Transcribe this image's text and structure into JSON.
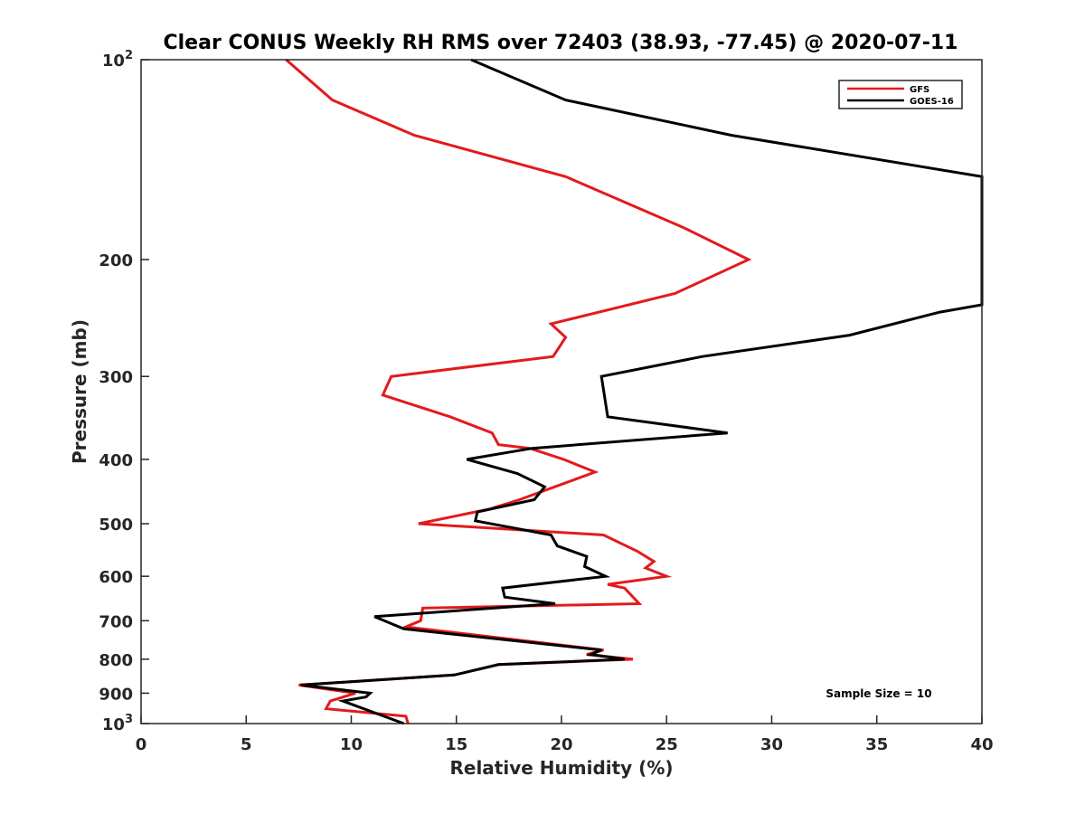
{
  "chart_data": {
    "type": "line",
    "title": "Clear CONUS Weekly RH RMS over 72403 (38.93, -77.45) @ 2020-07-11",
    "xlabel": "Relative Humidity (%)",
    "ylabel": "Pressure (mb)",
    "xlim": [
      0,
      40
    ],
    "ylim": [
      100,
      1000
    ],
    "y_scale": "log",
    "y_reversed": true,
    "x_ticks": [
      "0",
      "5",
      "10",
      "15",
      "20",
      "25",
      "30",
      "35",
      "40"
    ],
    "y_ticks": [
      {
        "value": 100,
        "label": "10",
        "sup": "2"
      },
      {
        "value": 200,
        "label": "200",
        "sup": ""
      },
      {
        "value": 300,
        "label": "300",
        "sup": ""
      },
      {
        "value": 400,
        "label": "400",
        "sup": ""
      },
      {
        "value": 500,
        "label": "500",
        "sup": ""
      },
      {
        "value": 600,
        "label": "600",
        "sup": ""
      },
      {
        "value": 700,
        "label": "700",
        "sup": ""
      },
      {
        "value": 800,
        "label": "800",
        "sup": ""
      },
      {
        "value": 900,
        "label": "900",
        "sup": ""
      },
      {
        "value": 1000,
        "label": "10",
        "sup": "3"
      }
    ],
    "grid": false,
    "legend_position": "top-right",
    "annotation": "Sample Size = 10",
    "series": [
      {
        "name": "GFS",
        "color": "#e31a1c",
        "points": [
          [
            6.9,
            100
          ],
          [
            9.1,
            115
          ],
          [
            13.0,
            130
          ],
          [
            20.2,
            150
          ],
          [
            25.8,
            179
          ],
          [
            28.9,
            200
          ],
          [
            25.4,
            225
          ],
          [
            19.5,
            250
          ],
          [
            20.2,
            262
          ],
          [
            19.6,
            280
          ],
          [
            11.9,
            300
          ],
          [
            11.5,
            320
          ],
          [
            14.7,
            345
          ],
          [
            16.7,
            365
          ],
          [
            17.0,
            380
          ],
          [
            18.5,
            385
          ],
          [
            20.1,
            400
          ],
          [
            21.6,
            418
          ],
          [
            20.1,
            435
          ],
          [
            18.0,
            460
          ],
          [
            16.6,
            475
          ],
          [
            13.2,
            500
          ],
          [
            22.0,
            520
          ],
          [
            23.6,
            550
          ],
          [
            24.4,
            570
          ],
          [
            24.0,
            583
          ],
          [
            25.0,
            600
          ],
          [
            22.2,
            617
          ],
          [
            23.0,
            625
          ],
          [
            23.7,
            660
          ],
          [
            13.4,
            670
          ],
          [
            13.3,
            700
          ],
          [
            12.6,
            715
          ],
          [
            22.0,
            775
          ],
          [
            21.2,
            787
          ],
          [
            23.4,
            800
          ],
          [
            17.0,
            815
          ],
          [
            14.9,
            845
          ],
          [
            7.5,
            875
          ],
          [
            10.2,
            900
          ],
          [
            9.0,
            925
          ],
          [
            8.8,
            950
          ],
          [
            12.6,
            975
          ],
          [
            12.7,
            1000
          ]
        ]
      },
      {
        "name": "GOES-16",
        "color": "#000000",
        "points": [
          [
            15.7,
            100
          ],
          [
            20.2,
            115
          ],
          [
            28.1,
            130
          ],
          [
            40.0,
            150
          ],
          [
            40.0,
            234
          ],
          [
            38.0,
            240
          ],
          [
            33.7,
            260
          ],
          [
            26.7,
            280
          ],
          [
            21.9,
            300
          ],
          [
            22.2,
            345
          ],
          [
            27.9,
            365
          ],
          [
            18.6,
            385
          ],
          [
            15.5,
            400
          ],
          [
            17.9,
            420
          ],
          [
            19.2,
            440
          ],
          [
            18.7,
            460
          ],
          [
            16.0,
            480
          ],
          [
            15.9,
            495
          ],
          [
            19.5,
            520
          ],
          [
            19.8,
            540
          ],
          [
            21.2,
            560
          ],
          [
            21.1,
            580
          ],
          [
            22.1,
            600
          ],
          [
            17.2,
            625
          ],
          [
            17.3,
            645
          ],
          [
            19.7,
            660
          ],
          [
            11.1,
            690
          ],
          [
            12.5,
            720
          ],
          [
            21.9,
            775
          ],
          [
            21.4,
            787
          ],
          [
            23.0,
            800
          ],
          [
            17.0,
            815
          ],
          [
            14.9,
            845
          ],
          [
            7.6,
            875
          ],
          [
            10.9,
            900
          ],
          [
            10.7,
            912
          ],
          [
            9.6,
            925
          ],
          [
            12.5,
            1000
          ]
        ]
      }
    ]
  }
}
